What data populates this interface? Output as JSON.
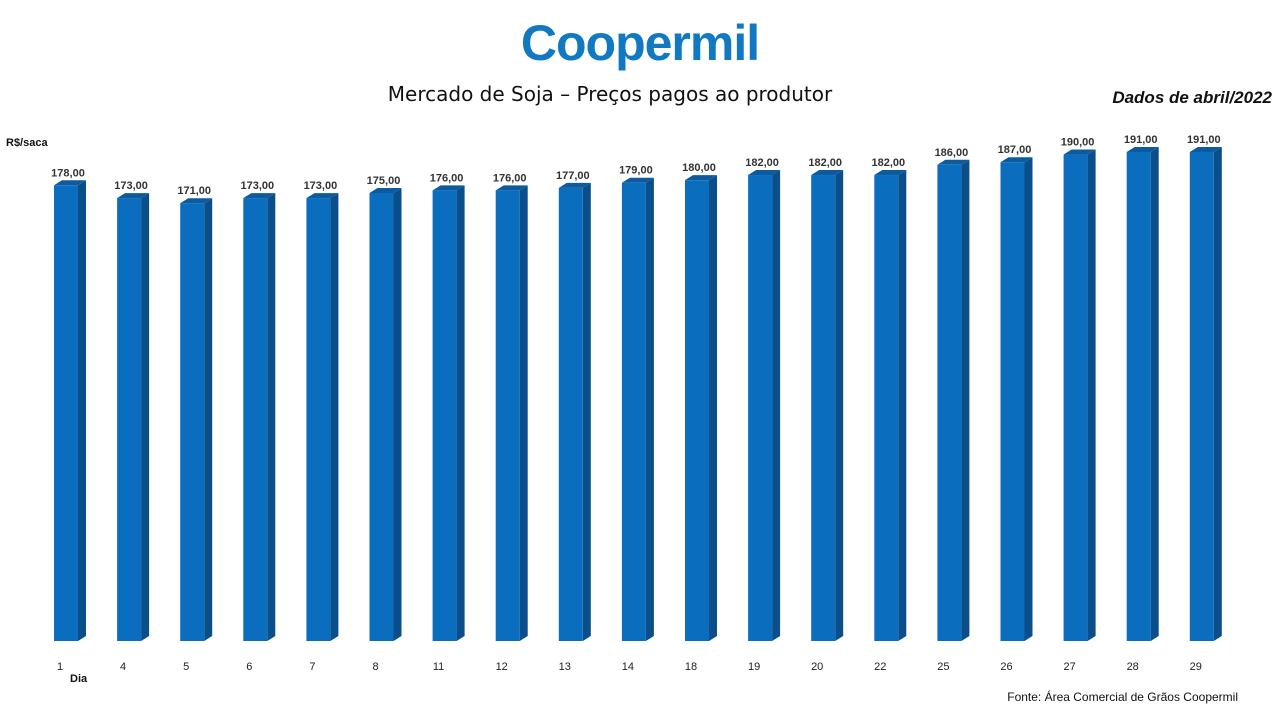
{
  "logo": "Coopermil",
  "chart_data": {
    "type": "bar",
    "title": "Mercado de Soja – Preços pagos ao produtor",
    "subtitle": "Dados de abril/2022",
    "ylabel": "R$/saca",
    "xlabel": "Dia",
    "source": "Fonte: Área Comercial de Grãos Coopermil",
    "categories": [
      "1",
      "4",
      "5",
      "6",
      "7",
      "8",
      "11",
      "12",
      "13",
      "14",
      "18",
      "19",
      "20",
      "22",
      "25",
      "26",
      "27",
      "28",
      "29"
    ],
    "values": [
      178,
      173,
      171,
      173,
      173,
      175,
      176,
      176,
      177,
      179,
      180,
      182,
      182,
      182,
      186,
      187,
      190,
      191,
      191
    ],
    "value_labels": [
      "178,00",
      "173,00",
      "171,00",
      "173,00",
      "173,00",
      "175,00",
      "176,00",
      "176,00",
      "177,00",
      "179,00",
      "180,00",
      "182,00",
      "182,00",
      "182,00",
      "186,00",
      "187,00",
      "190,00",
      "191,00",
      "191,00"
    ],
    "ylim": [
      0,
      191
    ],
    "colors": {
      "bar_front": "#0b6dbd",
      "bar_side": "#0a4f8a",
      "bar_top": "#0d5a9e"
    },
    "grid": false
  }
}
